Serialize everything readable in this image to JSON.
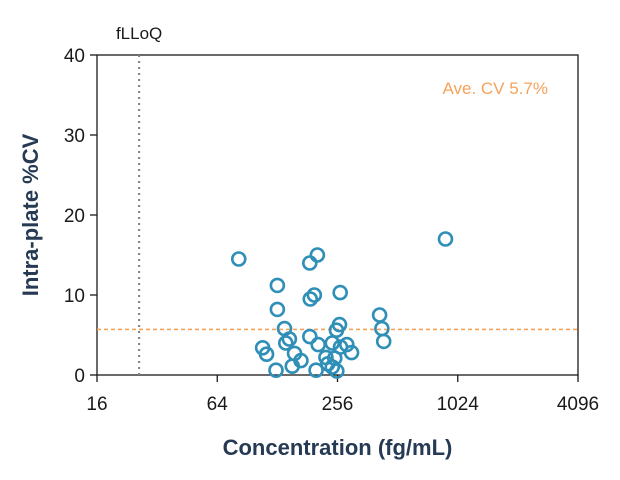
{
  "chart_data": {
    "type": "scatter",
    "xlabel": "Concentration (fg/mL)",
    "ylabel": "Intra-plate %CV",
    "x_scale": "log2",
    "xlim": [
      16,
      4096
    ],
    "ylim": [
      0,
      40
    ],
    "x_ticks": [
      {
        "value": 16,
        "label": "16"
      },
      {
        "value": 64,
        "label": "64"
      },
      {
        "value": 256,
        "label": "256"
      },
      {
        "value": 1024,
        "label": "1024"
      },
      {
        "value": 4096,
        "label": "4096"
      }
    ],
    "y_ticks": [
      {
        "value": 0,
        "label": "0"
      },
      {
        "value": 10,
        "label": "10"
      },
      {
        "value": 20,
        "label": "20"
      },
      {
        "value": 30,
        "label": "30"
      },
      {
        "value": 40,
        "label": "40"
      }
    ],
    "grid": false,
    "lloq_line": {
      "x": 26,
      "label": "fLLoQ",
      "color": "#808080"
    },
    "avg_cv_line": {
      "y": 5.7,
      "label": "Ave. CV 5.7%",
      "color": "#f5a25b"
    },
    "marker_color": "#2f8fb7",
    "points": [
      {
        "x": 82,
        "y": 14.5
      },
      {
        "x": 186,
        "y": 14
      },
      {
        "x": 203,
        "y": 15
      },
      {
        "x": 889,
        "y": 17
      },
      {
        "x": 128,
        "y": 11.2
      },
      {
        "x": 187,
        "y": 9.5
      },
      {
        "x": 196,
        "y": 10
      },
      {
        "x": 264,
        "y": 10.3
      },
      {
        "x": 128,
        "y": 8.2
      },
      {
        "x": 416,
        "y": 7.5
      },
      {
        "x": 427,
        "y": 5.8
      },
      {
        "x": 436,
        "y": 4.2
      },
      {
        "x": 262,
        "y": 6.3
      },
      {
        "x": 253,
        "y": 5.6
      },
      {
        "x": 139,
        "y": 5.8
      },
      {
        "x": 186,
        "y": 4.8
      },
      {
        "x": 147,
        "y": 4.5
      },
      {
        "x": 141,
        "y": 4.0
      },
      {
        "x": 205,
        "y": 3.8
      },
      {
        "x": 241,
        "y": 4.0
      },
      {
        "x": 265,
        "y": 3.5
      },
      {
        "x": 285,
        "y": 3.8
      },
      {
        "x": 301,
        "y": 2.8
      },
      {
        "x": 108,
        "y": 3.4
      },
      {
        "x": 113,
        "y": 2.6
      },
      {
        "x": 156,
        "y": 2.7
      },
      {
        "x": 224,
        "y": 2.2
      },
      {
        "x": 248,
        "y": 2.1
      },
      {
        "x": 229,
        "y": 1.4
      },
      {
        "x": 168,
        "y": 1.8
      },
      {
        "x": 152,
        "y": 1.1
      },
      {
        "x": 241,
        "y": 1.0
      },
      {
        "x": 126,
        "y": 0.6
      },
      {
        "x": 200,
        "y": 0.6
      },
      {
        "x": 254,
        "y": 0.5
      }
    ]
  }
}
